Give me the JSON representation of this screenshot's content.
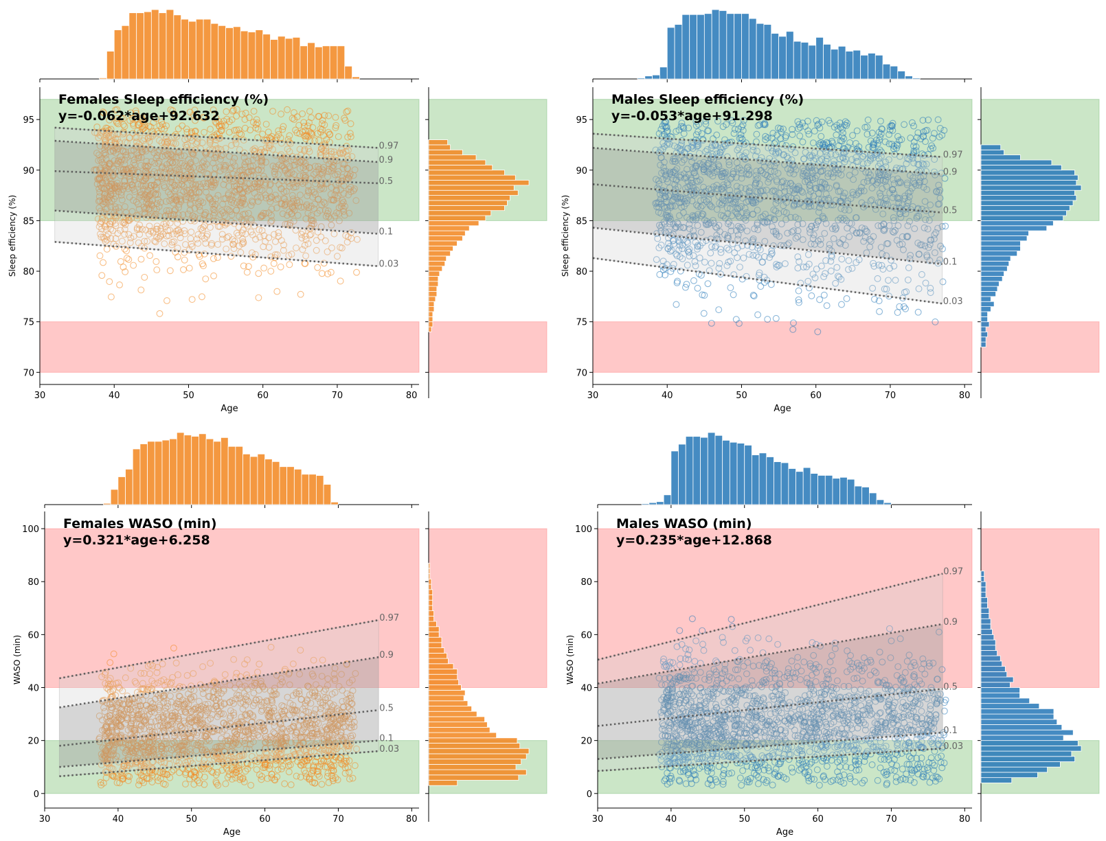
{
  "colors": {
    "female": "#f28a25",
    "male": "#2b7bba",
    "green_band": "#a8d5a2",
    "red_band": "#ffaaaa",
    "gray_band": "#cfcfcf",
    "quantile_line": "#555555"
  },
  "chart_data": [
    {
      "type": "scatter",
      "panel": "females-sleep-efficiency",
      "series_color": "female",
      "title": "Females Sleep efficiency (%)",
      "equation": "y=-0.062*age+92.632",
      "xlabel": "Age",
      "ylabel": "Sleep efficiency (%)",
      "xlim": [
        30,
        81
      ],
      "ylim": [
        68.8,
        98.2
      ],
      "xticks": [
        30,
        40,
        50,
        60,
        70,
        80
      ],
      "yticks": [
        70,
        75,
        80,
        85,
        90,
        95
      ],
      "green_band": [
        85,
        97
      ],
      "red_band": [
        70,
        75
      ],
      "gray_band_x": [
        32,
        75.5
      ],
      "gray_band_y": [
        [
          82.9,
          80.5
        ],
        [
          94.2,
          92.2
        ]
      ],
      "dark_band_y": [
        [
          86.0,
          83.7
        ],
        [
          92.9,
          90.8
        ]
      ],
      "scatter_x_range": [
        36,
        72
      ],
      "scatter_y_center": 89.5,
      "scatter_spread": 4.5,
      "scatter_y_range": [
        74,
        96
      ],
      "quantiles": [
        {
          "label": "0.97",
          "y": [
            94.2,
            92.2
          ]
        },
        {
          "label": "0.9",
          "y": [
            92.9,
            90.8
          ]
        },
        {
          "label": "0.5",
          "y": [
            89.9,
            88.7
          ]
        },
        {
          "label": "0.1",
          "y": [
            86.0,
            83.7
          ]
        },
        {
          "label": "0.03",
          "y": [
            82.9,
            80.5
          ]
        }
      ],
      "top_hist": {
        "start": 38,
        "width": 1,
        "counts": [
          1,
          26,
          46,
          50,
          62,
          62,
          63,
          65,
          62,
          65,
          60,
          56,
          54,
          56,
          56,
          52,
          50,
          48,
          49,
          45,
          44,
          46,
          42,
          37,
          40,
          38,
          39,
          31,
          34,
          30,
          31,
          31,
          31,
          12,
          2
        ]
      },
      "side_hist": {
        "start": 74,
        "width": 0.5,
        "counts": [
          2,
          3,
          3,
          3,
          4,
          4,
          5,
          6,
          6,
          7,
          7,
          8,
          10,
          12,
          13,
          16,
          18,
          21,
          25,
          27,
          30,
          37,
          42,
          46,
          56,
          58,
          60,
          66,
          63,
          74,
          64,
          56,
          47,
          42,
          35,
          25,
          16,
          14
        ]
      }
    },
    {
      "type": "scatter",
      "panel": "males-sleep-efficiency",
      "series_color": "male",
      "title": "Males Sleep efficiency (%)",
      "equation": "y=-0.053*age+91.298",
      "xlabel": "Age",
      "ylabel": "Sleep efficiency (%)",
      "xlim": [
        30,
        81
      ],
      "ylim": [
        68.8,
        98.2
      ],
      "xticks": [
        30,
        40,
        50,
        60,
        70,
        80
      ],
      "yticks": [
        70,
        75,
        80,
        85,
        90,
        95
      ],
      "green_band": [
        85,
        97
      ],
      "red_band": [
        70,
        75
      ],
      "gray_band_x": [
        30,
        77
      ],
      "gray_band_y": [
        [
          81.3,
          76.8
        ],
        [
          93.6,
          91.3
        ]
      ],
      "dark_band_y": [
        [
          84.3,
          80.7
        ],
        [
          92.2,
          89.6
        ]
      ],
      "scatter_x_range": [
        37,
        77
      ],
      "scatter_y_center": 88.5,
      "scatter_spread": 5.5,
      "scatter_y_range": [
        72,
        95
      ],
      "quantiles": [
        {
          "label": "0.97",
          "y": [
            93.6,
            91.3
          ]
        },
        {
          "label": "0.9",
          "y": [
            92.2,
            89.6
          ]
        },
        {
          "label": "0.5",
          "y": [
            88.6,
            85.8
          ]
        },
        {
          "label": "0.1",
          "y": [
            84.3,
            80.7
          ]
        },
        {
          "label": "0.03",
          "y": [
            81.3,
            76.8
          ]
        }
      ],
      "top_hist": {
        "start": 36,
        "width": 1,
        "counts": [
          1,
          3,
          4,
          12,
          52,
          55,
          65,
          65,
          65,
          66,
          70,
          69,
          66,
          66,
          66,
          61,
          56,
          55,
          46,
          43,
          48,
          38,
          37,
          34,
          42,
          35,
          30,
          33,
          28,
          29,
          24,
          26,
          24,
          15,
          13,
          8,
          3,
          1
        ]
      },
      "side_hist": {
        "start": 72.5,
        "width": 0.5,
        "counts": [
          3,
          3,
          4,
          3,
          5,
          4,
          4,
          6,
          8,
          6,
          9,
          10,
          11,
          13,
          14,
          16,
          17,
          18,
          22,
          24,
          24,
          28,
          29,
          40,
          44,
          50,
          52,
          54,
          56,
          58,
          57,
          61,
          58,
          59,
          57,
          49,
          43,
          24,
          14,
          12
        ]
      }
    },
    {
      "type": "scatter",
      "panel": "females-waso",
      "series_color": "female",
      "title": "Females WASO (min)",
      "equation": "y=0.321*age+6.258",
      "xlabel": "Age",
      "ylabel": "WASO (min)",
      "xlim": [
        30,
        81
      ],
      "ylim": [
        -5.5,
        106.5
      ],
      "xticks": [
        30,
        40,
        50,
        60,
        70,
        80
      ],
      "yticks": [
        0,
        20,
        40,
        60,
        80,
        100
      ],
      "green_band": [
        0,
        20
      ],
      "red_band": [
        40,
        100
      ],
      "gray_band_x": [
        32,
        75.5
      ],
      "gray_band_y": [
        [
          6.5,
          16.0
        ],
        [
          43.5,
          65.5
        ]
      ],
      "dark_band_y": [
        [
          10.0,
          20.0
        ],
        [
          32.5,
          51.5
        ]
      ],
      "scatter_x_range": [
        36,
        72
      ],
      "scatter_y_center": 22,
      "scatter_spread": 12,
      "scatter_y_range": [
        3,
        88
      ],
      "quantiles": [
        {
          "label": "0.97",
          "y": [
            43.5,
            65.5
          ]
        },
        {
          "label": "0.9",
          "y": [
            32.5,
            51.5
          ]
        },
        {
          "label": "0.5",
          "y": [
            18.0,
            31.5
          ]
        },
        {
          "label": "0.1",
          "y": [
            10.0,
            20.0
          ]
        },
        {
          "label": "0.03",
          "y": [
            6.5,
            16.0
          ]
        }
      ],
      "top_hist": {
        "start": 38,
        "width": 1,
        "counts": [
          1,
          12,
          22,
          28,
          44,
          48,
          50,
          50,
          51,
          52,
          57,
          55,
          54,
          56,
          52,
          50,
          53,
          46,
          46,
          40,
          38,
          40,
          36,
          34,
          30,
          30,
          28,
          24,
          24,
          23,
          16,
          2
        ]
      },
      "side_hist": {
        "start": 3,
        "width": 2,
        "counts": [
          22,
          69,
          75,
          67,
          71,
          75,
          77,
          70,
          68,
          52,
          47,
          45,
          43,
          37,
          33,
          30,
          27,
          28,
          25,
          23,
          22,
          22,
          19,
          15,
          14,
          12,
          10,
          10,
          8,
          8,
          6,
          4,
          4,
          3,
          3,
          3,
          3,
          2,
          2,
          1,
          1,
          1
        ]
      }
    },
    {
      "type": "scatter",
      "panel": "males-waso",
      "series_color": "male",
      "title": "Males WASO (min)",
      "equation": "y=0.235*age+12.868",
      "xlabel": "Age",
      "ylabel": "WASO (min)",
      "xlim": [
        30,
        81
      ],
      "ylim": [
        -5.5,
        106.5
      ],
      "xticks": [
        30,
        40,
        50,
        60,
        70,
        80
      ],
      "yticks": [
        0,
        20,
        40,
        60,
        80,
        100
      ],
      "green_band": [
        0,
        20
      ],
      "red_band": [
        40,
        100
      ],
      "gray_band_x": [
        30,
        77
      ],
      "gray_band_y": [
        [
          8.5,
          17.0
        ],
        [
          50.5,
          83.0
        ]
      ],
      "dark_band_y": [
        [
          13.0,
          23.0
        ],
        [
          41.5,
          64.0
        ]
      ],
      "scatter_x_range": [
        37,
        77
      ],
      "scatter_y_center": 25,
      "scatter_spread": 14,
      "scatter_y_range": [
        3,
        95
      ],
      "quantiles": [
        {
          "label": "0.97",
          "y": [
            50.5,
            83.0
          ]
        },
        {
          "label": "0.9",
          "y": [
            41.5,
            64.0
          ]
        },
        {
          "label": "0.5",
          "y": [
            25.5,
            39.5
          ]
        },
        {
          "label": "0.1",
          "y": [
            13.0,
            23.0
          ]
        },
        {
          "label": "0.03",
          "y": [
            8.5,
            17.0
          ]
        }
      ],
      "top_hist": {
        "start": 36,
        "width": 1,
        "counts": [
          1,
          2,
          3,
          10,
          55,
          62,
          70,
          70,
          69,
          74,
          71,
          66,
          64,
          63,
          61,
          51,
          53,
          49,
          44,
          43,
          37,
          34,
          38,
          32,
          30,
          30,
          27,
          28,
          26,
          19,
          18,
          12,
          5,
          2
        ]
      },
      "side_hist": {
        "start": 4,
        "width": 2,
        "counts": [
          19,
          35,
          41,
          49,
          58,
          56,
          62,
          60,
          51,
          57,
          50,
          47,
          45,
          45,
          36,
          30,
          24,
          24,
          18,
          20,
          16,
          15,
          13,
          12,
          10,
          9,
          9,
          8,
          7,
          6,
          6,
          5,
          5,
          4,
          4,
          3,
          3,
          3,
          2,
          2
        ]
      }
    }
  ]
}
